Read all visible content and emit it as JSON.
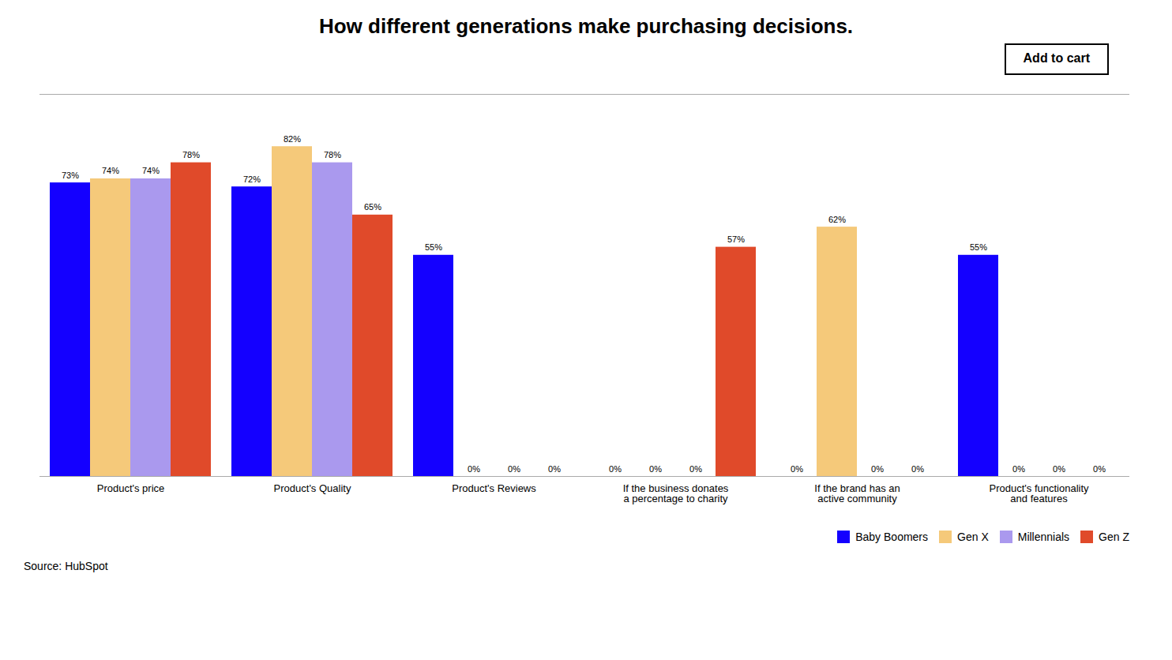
{
  "chart_data": {
    "type": "bar",
    "title": "How different generations make purchasing decisions.",
    "caption": "Source: HubSpot",
    "annotations": [
      "Add to cart"
    ],
    "categories": [
      "Product's price",
      "Product's Quality",
      "Product's Reviews",
      "If the business donates\na percentage to charity",
      "If the brand has an\nactive community",
      "Product's functionality\nand features"
    ],
    "series": [
      {
        "name": "Baby Boomers",
        "color": "#1400FF",
        "values": [
          73,
          72,
          55,
          0,
          0,
          55
        ],
        "value_labels": [
          "73%",
          "72%",
          "55%",
          "0%",
          "0%",
          "55%"
        ]
      },
      {
        "name": "Gen X",
        "color": "#F5C97A",
        "values": [
          74,
          82,
          0,
          0,
          62,
          0
        ],
        "value_labels": [
          "74%",
          "82%",
          "0%",
          "0%",
          "62%",
          "0%"
        ]
      },
      {
        "name": "Millennials",
        "color": "#AA99EE",
        "values": [
          74,
          78,
          0,
          0,
          0,
          0
        ],
        "value_labels": [
          "74%",
          "78%",
          "0%",
          "0%",
          "0%",
          "0%"
        ]
      },
      {
        "name": "Gen Z",
        "color": "#E04A2A",
        "values": [
          78,
          65,
          0,
          57,
          0,
          0
        ],
        "value_labels": [
          "78%",
          "65%",
          "0%",
          "57%",
          "0%",
          "0%"
        ]
      }
    ],
    "ylim": [
      0,
      95
    ],
    "tick_labels": "x",
    "data_labels": true,
    "grid": false,
    "legend": "lower right"
  }
}
